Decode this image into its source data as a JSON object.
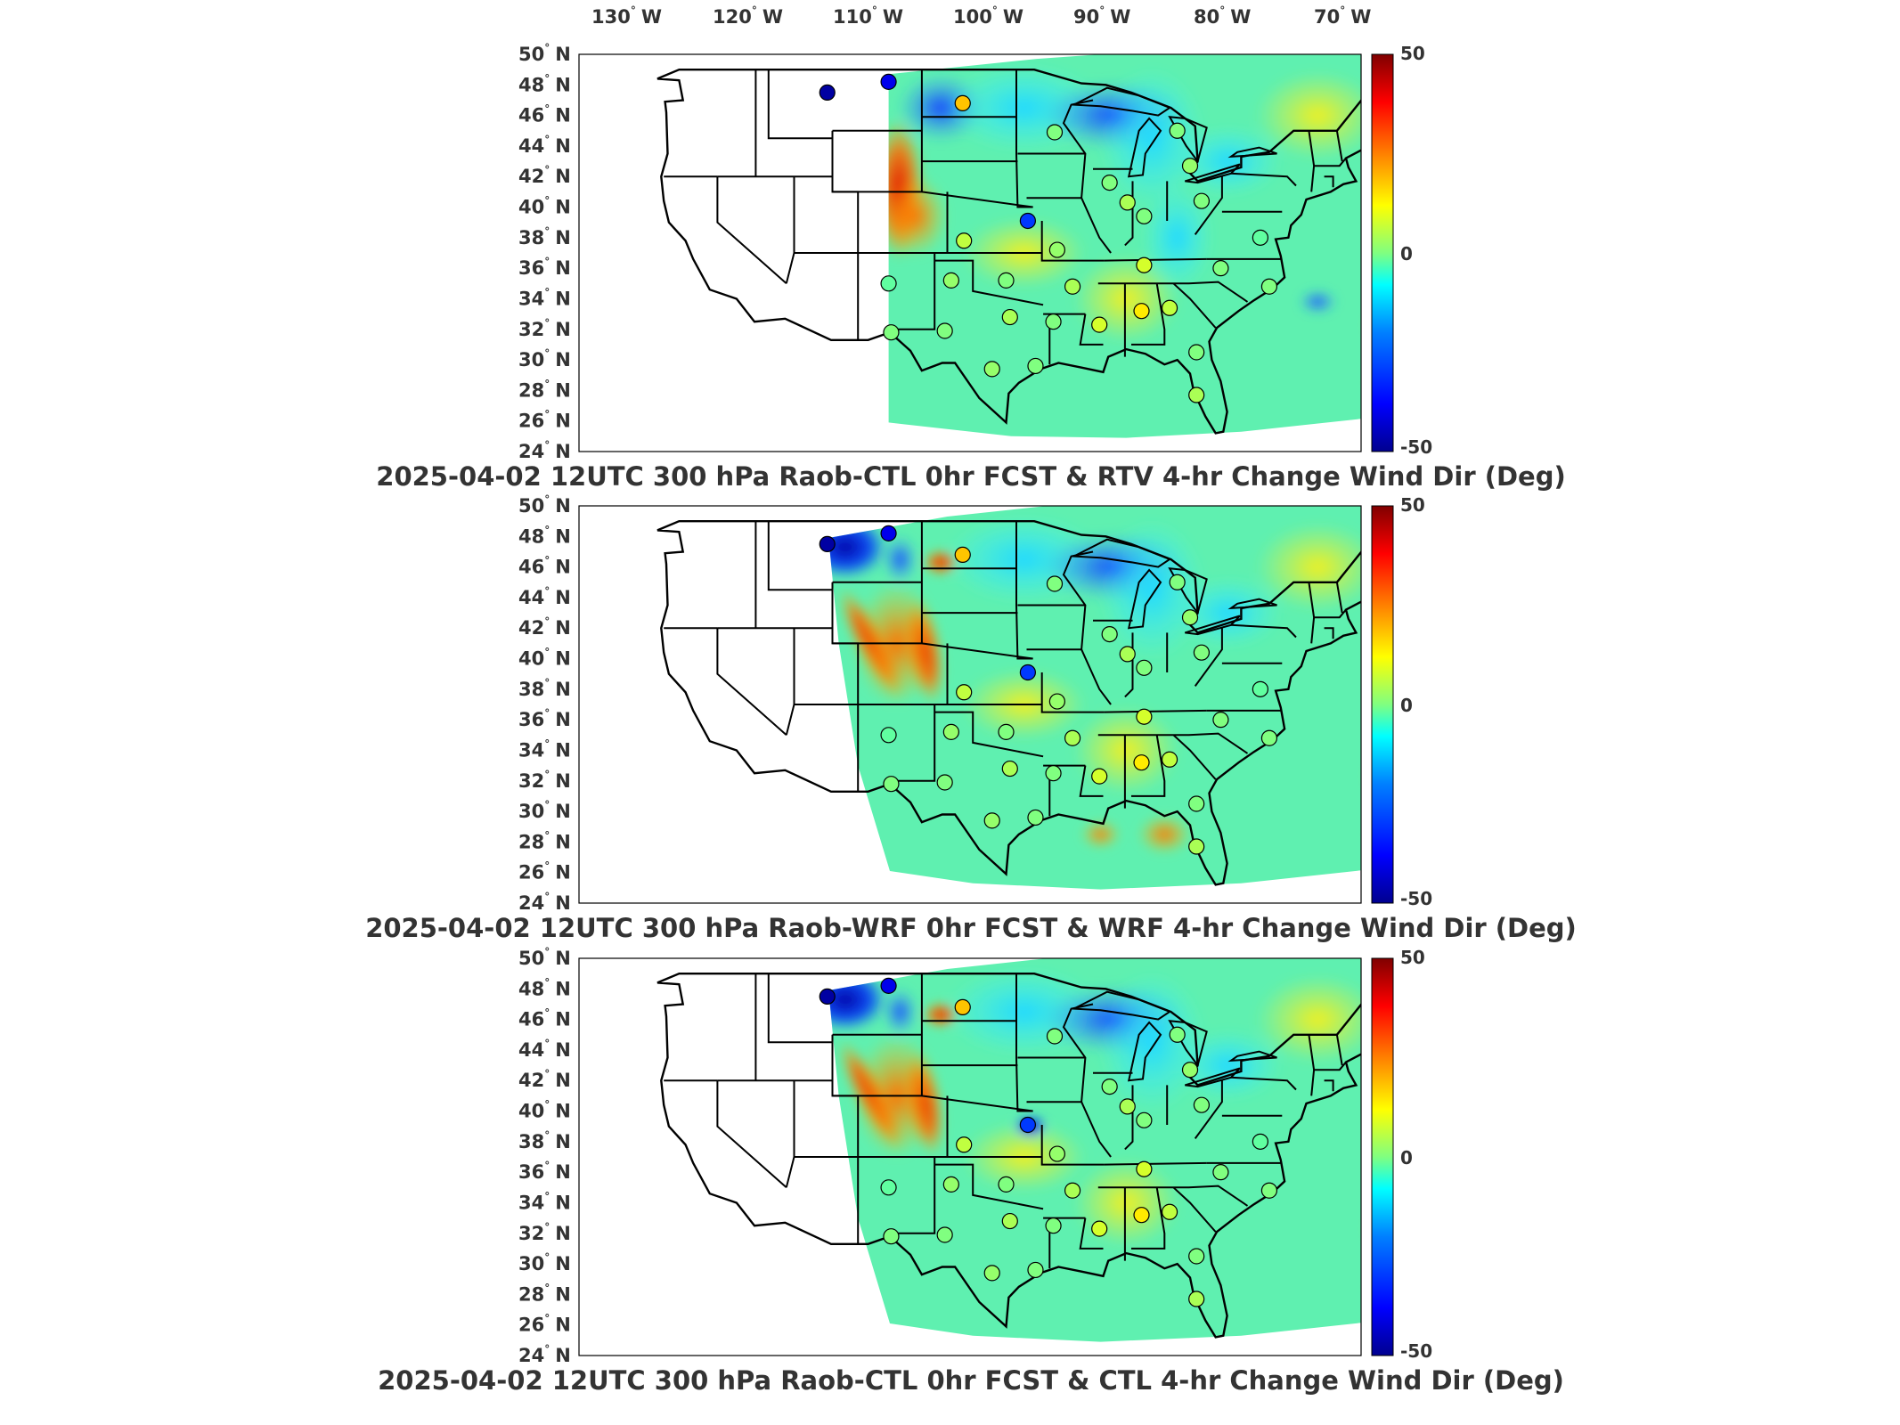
{
  "lon_labels": [
    {
      "deg": "130",
      "dir": "W"
    },
    {
      "deg": "120",
      "dir": "W"
    },
    {
      "deg": "110",
      "dir": "W"
    },
    {
      "deg": "100",
      "dir": "W"
    },
    {
      "deg": "90",
      "dir": "W"
    },
    {
      "deg": "80",
      "dir": "W"
    },
    {
      "deg": "70",
      "dir": "W"
    }
  ],
  "lat_labels": [
    {
      "deg": "50",
      "dir": "N"
    },
    {
      "deg": "48",
      "dir": "N"
    },
    {
      "deg": "46",
      "dir": "N"
    },
    {
      "deg": "44",
      "dir": "N"
    },
    {
      "deg": "42",
      "dir": "N"
    },
    {
      "deg": "40",
      "dir": "N"
    },
    {
      "deg": "38",
      "dir": "N"
    },
    {
      "deg": "36",
      "dir": "N"
    },
    {
      "deg": "34",
      "dir": "N"
    },
    {
      "deg": "32",
      "dir": "N"
    },
    {
      "deg": "30",
      "dir": "N"
    },
    {
      "deg": "28",
      "dir": "N"
    },
    {
      "deg": "26",
      "dir": "N"
    },
    {
      "deg": "24",
      "dir": "N"
    }
  ],
  "colorbar": {
    "ticks": [
      "50",
      "0",
      "-50"
    ],
    "range": [
      -50,
      50
    ],
    "colormap": [
      "#00008f",
      "#0000ff",
      "#0080ff",
      "#00ffff",
      "#80ff80",
      "#ffff00",
      "#ff8000",
      "#ff0000",
      "#800000"
    ]
  },
  "panels": [
    {
      "title": "2025-04-02 12UTC 300 hPa Raob-CTL 0hr FCST & RTV 4-hr Change Wind Dir (Deg)",
      "domain_variant": "rtv"
    },
    {
      "title": "2025-04-02 12UTC 300 hPa Raob-WRF 0hr FCST & WRF 4-hr Change Wind Dir (Deg)",
      "domain_variant": "wrf"
    },
    {
      "title": "2025-04-02 12UTC 300 hPa Raob-CTL 0hr FCST & CTL 4-hr Change Wind Dir (Deg)",
      "domain_variant": "ctl"
    }
  ],
  "stations": [
    {
      "lon": -111.4,
      "lat": 47.5,
      "value": -48
    },
    {
      "lon": -106.6,
      "lat": 48.2,
      "value": -40
    },
    {
      "lon": -100.8,
      "lat": 46.8,
      "value": 18
    },
    {
      "lon": -93.6,
      "lat": 44.9,
      "value": 0
    },
    {
      "lon": -84.0,
      "lat": 45.0,
      "value": 0
    },
    {
      "lon": -83.0,
      "lat": 42.7,
      "value": 2
    },
    {
      "lon": -89.3,
      "lat": 41.6,
      "value": 0
    },
    {
      "lon": -87.9,
      "lat": 40.3,
      "value": 4
    },
    {
      "lon": -95.7,
      "lat": 39.1,
      "value": -30
    },
    {
      "lon": -100.7,
      "lat": 37.8,
      "value": 6
    },
    {
      "lon": -93.4,
      "lat": 37.2,
      "value": 2
    },
    {
      "lon": -86.6,
      "lat": 39.4,
      "value": 0
    },
    {
      "lon": -82.1,
      "lat": 40.4,
      "value": 0
    },
    {
      "lon": -77.5,
      "lat": 38.0,
      "value": -2
    },
    {
      "lon": -80.6,
      "lat": 36.0,
      "value": 0
    },
    {
      "lon": -76.8,
      "lat": 34.8,
      "value": 0
    },
    {
      "lon": -86.6,
      "lat": 36.2,
      "value": 8
    },
    {
      "lon": -92.2,
      "lat": 34.8,
      "value": 4
    },
    {
      "lon": -97.4,
      "lat": 35.2,
      "value": 0
    },
    {
      "lon": -101.7,
      "lat": 35.2,
      "value": 2
    },
    {
      "lon": -106.6,
      "lat": 35.0,
      "value": -2
    },
    {
      "lon": -106.4,
      "lat": 31.8,
      "value": 0
    },
    {
      "lon": -102.2,
      "lat": 31.9,
      "value": 0
    },
    {
      "lon": -97.1,
      "lat": 32.8,
      "value": 4
    },
    {
      "lon": -93.7,
      "lat": 32.5,
      "value": 0
    },
    {
      "lon": -90.1,
      "lat": 32.3,
      "value": 8
    },
    {
      "lon": -86.8,
      "lat": 33.2,
      "value": 14
    },
    {
      "lon": -84.6,
      "lat": 33.4,
      "value": 6
    },
    {
      "lon": -82.5,
      "lat": 30.5,
      "value": 0
    },
    {
      "lon": -98.5,
      "lat": 29.4,
      "value": 2
    },
    {
      "lon": -95.1,
      "lat": 29.6,
      "value": 0
    },
    {
      "lon": -82.5,
      "lat": 27.7,
      "value": 4
    }
  ]
}
